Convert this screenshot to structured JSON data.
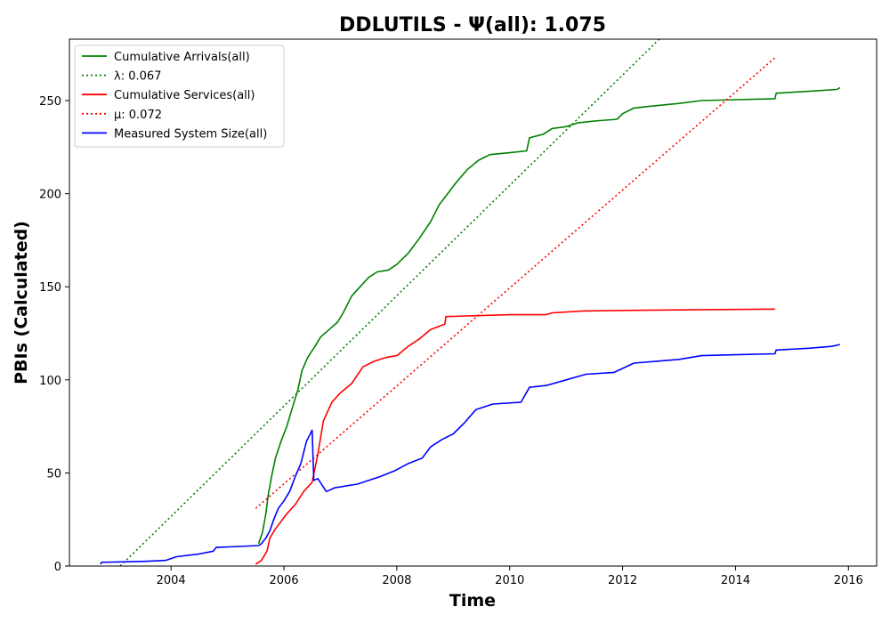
{
  "chart_data": {
    "type": "line",
    "title": "DDLUTILS -  Ψ(all): 1.075",
    "xlabel": "Time",
    "ylabel": "PBIs (Calculated)",
    "xlim": [
      2002.2,
      2016.5
    ],
    "ylim": [
      0,
      283
    ],
    "x_ticks": [
      2004,
      2006,
      2008,
      2010,
      2012,
      2014,
      2016
    ],
    "y_ticks": [
      0,
      50,
      100,
      150,
      200,
      250
    ],
    "grid": false,
    "legend_position": "top-left",
    "series": [
      {
        "name": "Cumulative Arrivals(all)",
        "color": "#008000",
        "style": "solid",
        "points": [
          [
            2005.55,
            12
          ],
          [
            2005.62,
            18
          ],
          [
            2005.68,
            28
          ],
          [
            2005.72,
            38
          ],
          [
            2005.78,
            48
          ],
          [
            2005.85,
            58
          ],
          [
            2005.95,
            67
          ],
          [
            2006.05,
            75
          ],
          [
            2006.15,
            85
          ],
          [
            2006.25,
            95
          ],
          [
            2006.32,
            105
          ],
          [
            2006.42,
            112
          ],
          [
            2006.55,
            118
          ],
          [
            2006.65,
            123
          ],
          [
            2006.8,
            127
          ],
          [
            2006.95,
            131
          ],
          [
            2007.05,
            136
          ],
          [
            2007.2,
            145
          ],
          [
            2007.35,
            150
          ],
          [
            2007.5,
            155
          ],
          [
            2007.65,
            158
          ],
          [
            2007.85,
            159
          ],
          [
            2008.0,
            162
          ],
          [
            2008.2,
            168
          ],
          [
            2008.4,
            176
          ],
          [
            2008.6,
            185
          ],
          [
            2008.75,
            194
          ],
          [
            2008.9,
            200
          ],
          [
            2009.05,
            206
          ],
          [
            2009.25,
            213
          ],
          [
            2009.45,
            218
          ],
          [
            2009.65,
            221
          ],
          [
            2010.0,
            222
          ],
          [
            2010.3,
            223
          ],
          [
            2010.35,
            230
          ],
          [
            2010.6,
            232
          ],
          [
            2010.75,
            235
          ],
          [
            2011.0,
            236
          ],
          [
            2011.2,
            238
          ],
          [
            2011.5,
            239
          ],
          [
            2011.9,
            240
          ],
          [
            2012.0,
            243
          ],
          [
            2012.2,
            246
          ],
          [
            2012.5,
            247
          ],
          [
            2013.0,
            248.5
          ],
          [
            2013.4,
            250
          ],
          [
            2014.0,
            250.5
          ],
          [
            2014.7,
            251
          ],
          [
            2014.72,
            254
          ],
          [
            2015.3,
            255
          ],
          [
            2015.8,
            256
          ],
          [
            2015.85,
            257
          ]
        ]
      },
      {
        "name": "λ: 0.067",
        "color": "#008000",
        "style": "dotted",
        "points": [
          [
            2003.1,
            0
          ],
          [
            2012.65,
            283
          ]
        ]
      },
      {
        "name": "Cumulative Services(all)",
        "color": "#ff0000",
        "style": "solid",
        "points": [
          [
            2005.5,
            1
          ],
          [
            2005.6,
            3
          ],
          [
            2005.7,
            8
          ],
          [
            2005.75,
            15
          ],
          [
            2005.85,
            20
          ],
          [
            2005.95,
            24
          ],
          [
            2006.05,
            28
          ],
          [
            2006.2,
            33
          ],
          [
            2006.35,
            40
          ],
          [
            2006.5,
            45
          ],
          [
            2006.6,
            60
          ],
          [
            2006.7,
            78
          ],
          [
            2006.85,
            88
          ],
          [
            2007.0,
            93
          ],
          [
            2007.2,
            98
          ],
          [
            2007.4,
            107
          ],
          [
            2007.6,
            110
          ],
          [
            2007.8,
            112
          ],
          [
            2008.0,
            113
          ],
          [
            2008.2,
            118
          ],
          [
            2008.4,
            122
          ],
          [
            2008.6,
            127
          ],
          [
            2008.85,
            130
          ],
          [
            2008.87,
            134
          ],
          [
            2010.0,
            135
          ],
          [
            2010.65,
            135
          ],
          [
            2010.75,
            136
          ],
          [
            2011.3,
            137
          ],
          [
            2012.0,
            137.3
          ],
          [
            2013.0,
            137.6
          ],
          [
            2014.0,
            137.8
          ],
          [
            2014.7,
            138
          ]
        ]
      },
      {
        "name": "μ: 0.072",
        "color": "#ff0000",
        "style": "dotted",
        "points": [
          [
            2005.5,
            31
          ],
          [
            2014.7,
            273
          ]
        ]
      },
      {
        "name": "Measured System Size(all)",
        "color": "#0000ff",
        "style": "solid",
        "points": [
          [
            2002.75,
            1
          ],
          [
            2002.77,
            2
          ],
          [
            2003.5,
            2.5
          ],
          [
            2003.9,
            3
          ],
          [
            2004.1,
            5
          ],
          [
            2004.5,
            6.5
          ],
          [
            2004.75,
            8
          ],
          [
            2004.8,
            10
          ],
          [
            2005.2,
            10.5
          ],
          [
            2005.55,
            11
          ],
          [
            2005.6,
            12
          ],
          [
            2005.68,
            15
          ],
          [
            2005.75,
            19
          ],
          [
            2005.82,
            25
          ],
          [
            2005.9,
            31
          ],
          [
            2006.0,
            35
          ],
          [
            2006.1,
            40
          ],
          [
            2006.2,
            48
          ],
          [
            2006.3,
            55
          ],
          [
            2006.4,
            67
          ],
          [
            2006.5,
            73
          ],
          [
            2006.53,
            46
          ],
          [
            2006.6,
            47
          ],
          [
            2006.75,
            40
          ],
          [
            2006.9,
            42
          ],
          [
            2007.1,
            43
          ],
          [
            2007.3,
            44
          ],
          [
            2007.5,
            46
          ],
          [
            2007.7,
            48
          ],
          [
            2007.95,
            51
          ],
          [
            2008.2,
            55
          ],
          [
            2008.45,
            58
          ],
          [
            2008.6,
            64
          ],
          [
            2008.8,
            68
          ],
          [
            2009.0,
            71
          ],
          [
            2009.2,
            77
          ],
          [
            2009.4,
            84
          ],
          [
            2009.7,
            87
          ],
          [
            2010.2,
            88
          ],
          [
            2010.35,
            96
          ],
          [
            2010.65,
            97
          ],
          [
            2011.0,
            100
          ],
          [
            2011.35,
            103
          ],
          [
            2011.85,
            104
          ],
          [
            2012.2,
            109
          ],
          [
            2012.6,
            110
          ],
          [
            2013.0,
            111
          ],
          [
            2013.4,
            113
          ],
          [
            2014.0,
            113.5
          ],
          [
            2014.7,
            114
          ],
          [
            2014.72,
            116
          ],
          [
            2015.3,
            117
          ],
          [
            2015.7,
            118
          ],
          [
            2015.85,
            119
          ]
        ]
      }
    ]
  }
}
